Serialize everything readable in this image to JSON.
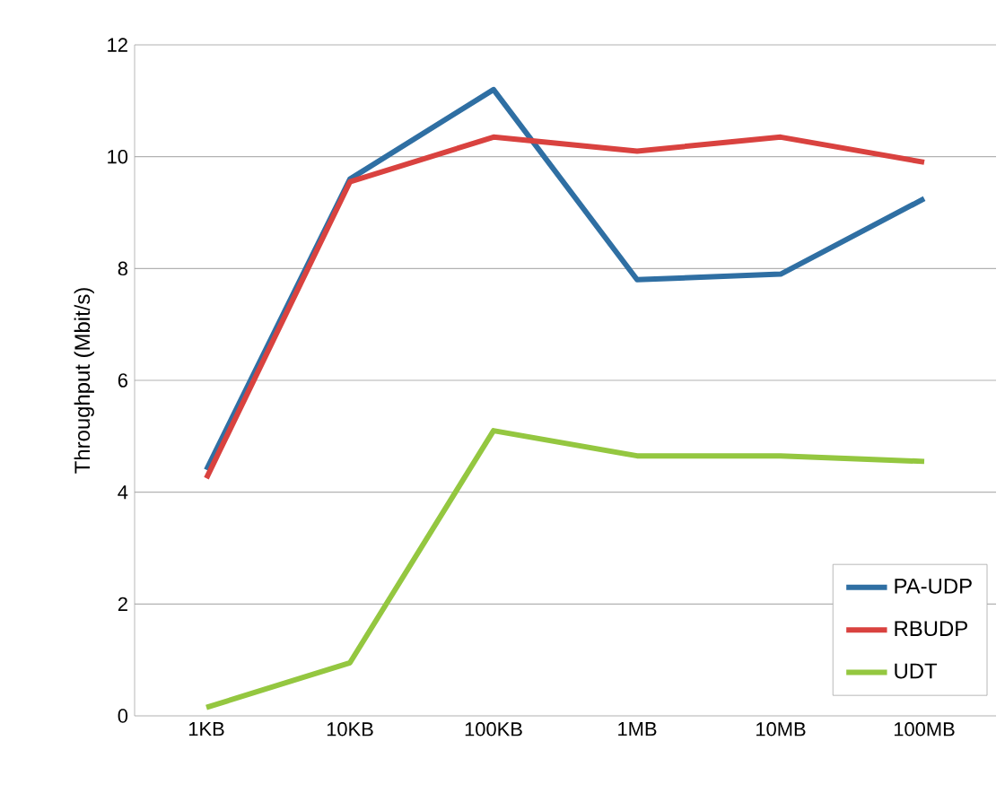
{
  "chart_data": {
    "type": "line",
    "ylabel": "Throughput (Mbit/s)",
    "categories": [
      "1KB",
      "10KB",
      "100KB",
      "1MB",
      "10MB",
      "100MB"
    ],
    "series": [
      {
        "name": "PA-UDP",
        "color": "#2f6fa3",
        "values": [
          4.4,
          9.6,
          11.2,
          7.8,
          7.9,
          9.25
        ]
      },
      {
        "name": "RBUDP",
        "color": "#d9423f",
        "values": [
          4.25,
          9.55,
          10.35,
          10.1,
          10.35,
          9.9
        ]
      },
      {
        "name": "UDT",
        "color": "#94c740",
        "values": [
          0.15,
          0.95,
          5.1,
          4.65,
          4.65,
          4.55
        ]
      }
    ],
    "ylim": [
      0,
      12
    ],
    "yticks": [
      0,
      2,
      4,
      6,
      8,
      10,
      12
    ],
    "grid": "y",
    "legend": "bottom right",
    "marker": "none",
    "line_style": "solid"
  }
}
